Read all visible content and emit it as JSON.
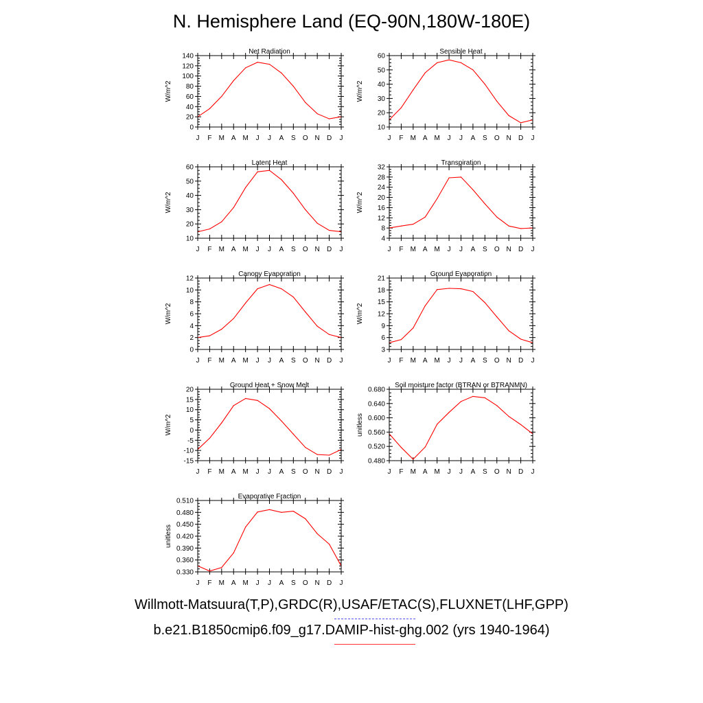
{
  "title": "N. Hemisphere Land (EQ-90N,180W-180E)",
  "legend": {
    "obs": "Willmott-Matsuura(T,P),GRDC(R),USAF/ETAC(S),FLUXNET(LHF,GPP)",
    "model": "b.e21.B1850cmip6.f09_g17.DAMIP-hist-ghg.002 (yrs 1940-1964)"
  },
  "colors": {
    "model_line": "#ff0000",
    "obs_line": "#5050ff",
    "axis": "#000000"
  },
  "chart_data": [
    {
      "type": "line",
      "title": "Net Radiation",
      "ylabel": "W/m^2",
      "ylim": [
        0,
        140
      ],
      "yticks": [
        "0",
        "20",
        "40",
        "60",
        "80",
        "100",
        "120",
        "140"
      ],
      "categories": [
        "J",
        "F",
        "M",
        "A",
        "M",
        "J",
        "J",
        "A",
        "S",
        "O",
        "N",
        "D",
        "J"
      ],
      "series": [
        {
          "values": [
            20,
            36,
            60,
            91,
            116,
            127,
            123,
            106,
            80,
            48,
            26,
            16,
            20
          ]
        }
      ]
    },
    {
      "type": "line",
      "title": "Sensible Heat",
      "ylabel": "W/m^2",
      "ylim": [
        10,
        60
      ],
      "yticks": [
        "10",
        "20",
        "30",
        "40",
        "50",
        "60"
      ],
      "categories": [
        "J",
        "F",
        "M",
        "A",
        "M",
        "J",
        "J",
        "A",
        "S",
        "O",
        "N",
        "D",
        "J"
      ],
      "series": [
        {
          "values": [
            15,
            23.5,
            36,
            48,
            55,
            57,
            55,
            50,
            40,
            28,
            18,
            13,
            15
          ]
        }
      ]
    },
    {
      "type": "line",
      "title": "Latent Heat",
      "ylabel": "W/m^2",
      "ylim": [
        10,
        60
      ],
      "yticks": [
        "10",
        "20",
        "30",
        "40",
        "50",
        "60"
      ],
      "categories": [
        "J",
        "F",
        "M",
        "A",
        "M",
        "J",
        "J",
        "A",
        "S",
        "O",
        "N",
        "D",
        "J"
      ],
      "series": [
        {
          "values": [
            14.5,
            16.5,
            21.5,
            31.5,
            45.5,
            56.5,
            57.5,
            51,
            41.5,
            30,
            20.5,
            15.5,
            14.5
          ]
        }
      ]
    },
    {
      "type": "line",
      "title": "Transpiration",
      "ylabel": "W/m^2",
      "ylim": [
        4,
        32
      ],
      "yticks": [
        "4",
        "8",
        "12",
        "16",
        "20",
        "24",
        "28",
        "32"
      ],
      "categories": [
        "J",
        "F",
        "M",
        "A",
        "M",
        "J",
        "J",
        "A",
        "S",
        "O",
        "N",
        "D",
        "J"
      ],
      "series": [
        {
          "values": [
            8,
            8.8,
            9.5,
            12.3,
            19.5,
            27.7,
            28,
            23,
            17.5,
            12.3,
            8.8,
            7.8,
            8
          ]
        }
      ]
    },
    {
      "type": "line",
      "title": "Canopy Evaporation",
      "ylabel": "W/m^2",
      "ylim": [
        0,
        12
      ],
      "yticks": [
        "0",
        "2",
        "4",
        "6",
        "8",
        "10",
        "12"
      ],
      "categories": [
        "J",
        "F",
        "M",
        "A",
        "M",
        "J",
        "J",
        "A",
        "S",
        "O",
        "N",
        "D",
        "J"
      ],
      "series": [
        {
          "values": [
            2,
            2.3,
            3.4,
            5.2,
            7.8,
            10.2,
            10.9,
            10.2,
            8.8,
            6.3,
            3.9,
            2.5,
            2
          ]
        }
      ]
    },
    {
      "type": "line",
      "title": "Ground Evaporation",
      "ylabel": "W/m^2",
      "ylim": [
        3,
        21
      ],
      "yticks": [
        "3",
        "6",
        "9",
        "12",
        "15",
        "18",
        "21"
      ],
      "categories": [
        "J",
        "F",
        "M",
        "A",
        "M",
        "J",
        "J",
        "A",
        "S",
        "O",
        "N",
        "D",
        "J"
      ],
      "series": [
        {
          "values": [
            4.7,
            5.5,
            8.4,
            14,
            18.1,
            18.4,
            18.3,
            17.6,
            14.8,
            11.2,
            7.7,
            5.6,
            4.7
          ]
        }
      ]
    },
    {
      "type": "line",
      "title": "Ground Heat + Snow Melt",
      "ylabel": "W/m^2",
      "ylim": [
        -15,
        20
      ],
      "yticks": [
        "-15",
        "-10",
        "-5",
        "0",
        "5",
        "10",
        "15",
        "20"
      ],
      "categories": [
        "J",
        "F",
        "M",
        "A",
        "M",
        "J",
        "J",
        "A",
        "S",
        "O",
        "N",
        "D",
        "J"
      ],
      "series": [
        {
          "values": [
            -9.5,
            -4,
            3.5,
            12,
            15.5,
            14.5,
            10.5,
            4.5,
            -2,
            -8.5,
            -12,
            -12.3,
            -9.5
          ]
        }
      ]
    },
    {
      "type": "line",
      "title": "Soil moisture factor (BTRAN or BTRANMN)",
      "ylabel": "unitless",
      "ylim": [
        0.48,
        0.69
      ],
      "yticks": [
        "0.480",
        "0.520",
        "0.560",
        "0.600",
        "0.640",
        "0.680"
      ],
      "categories": [
        "J",
        "F",
        "M",
        "A",
        "M",
        "J",
        "J",
        "A",
        "S",
        "O",
        "N",
        "D",
        "J"
      ],
      "series": [
        {
          "values": [
            0.559,
            0.519,
            0.484,
            0.52,
            0.587,
            0.622,
            0.654,
            0.669,
            0.665,
            0.642,
            0.61,
            0.586,
            0.559
          ]
        }
      ]
    },
    {
      "type": "line",
      "title": "Evaporative Fraction",
      "ylabel": "unitless",
      "ylim": [
        0.33,
        0.51
      ],
      "yticks": [
        "0.330",
        "0.360",
        "0.390",
        "0.420",
        "0.450",
        "0.480",
        "0.510"
      ],
      "categories": [
        "J",
        "F",
        "M",
        "A",
        "M",
        "J",
        "J",
        "A",
        "S",
        "O",
        "N",
        "D",
        "J"
      ],
      "series": [
        {
          "values": [
            0.345,
            0.332,
            0.341,
            0.378,
            0.443,
            0.481,
            0.487,
            0.48,
            0.483,
            0.464,
            0.426,
            0.4,
            0.345
          ]
        }
      ]
    }
  ]
}
